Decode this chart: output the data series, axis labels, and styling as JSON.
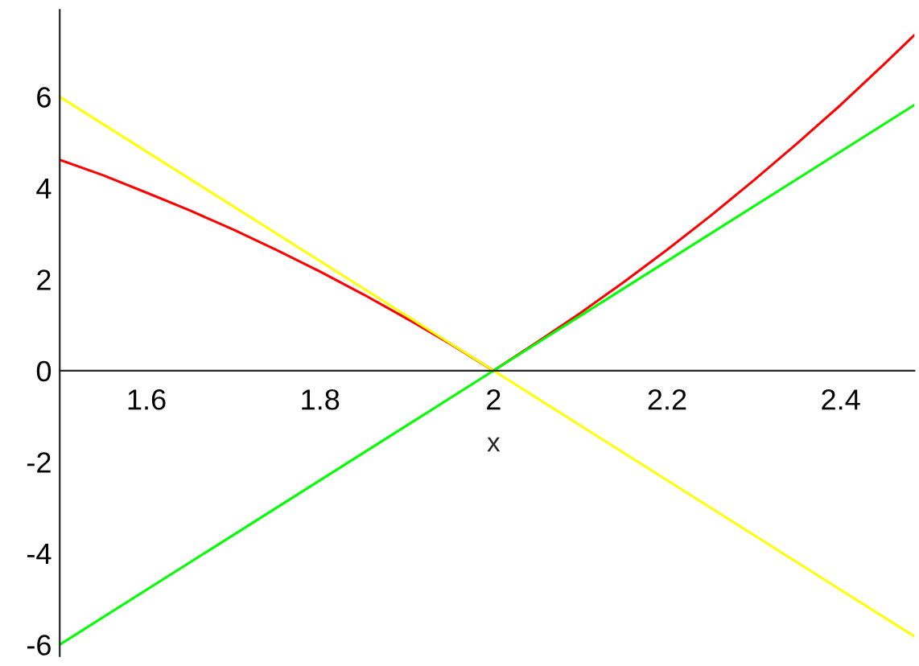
{
  "chart_data": {
    "type": "line",
    "xlabel": "x",
    "xlim": [
      1.5,
      2.485
    ],
    "ylim": [
      -6.25,
      7.9
    ],
    "xticks": [
      1.6,
      1.8,
      2,
      2.2,
      2.4
    ],
    "yticks": [
      -6,
      -4,
      -2,
      0,
      2,
      4,
      6
    ],
    "grid": false,
    "legend": false,
    "marker": "none",
    "line_style": "solid",
    "series": [
      {
        "color": "#ff0000",
        "x": [
          1.5,
          1.55,
          1.6,
          1.65,
          1.7,
          1.75,
          1.8,
          1.85,
          1.9,
          1.95,
          2,
          2.05,
          2.1,
          2.15,
          2.2,
          2.25,
          2.3,
          2.35,
          2.4,
          2.45,
          2.485
        ],
        "values": [
          4.62,
          4.28,
          3.9,
          3.51,
          3.09,
          2.64,
          2.17,
          1.67,
          1.14,
          0.59,
          0,
          0.62,
          1.26,
          1.94,
          2.65,
          3.39,
          4.17,
          4.98,
          5.82,
          6.71,
          7.35
        ]
      },
      {
        "color": "#ffff00",
        "x": [
          1.5,
          2,
          2.485
        ],
        "values": [
          6,
          0,
          -5.82
        ]
      },
      {
        "color": "#00ff00",
        "x": [
          1.5,
          2,
          2.485
        ],
        "values": [
          -6,
          0,
          5.82
        ]
      }
    ]
  }
}
